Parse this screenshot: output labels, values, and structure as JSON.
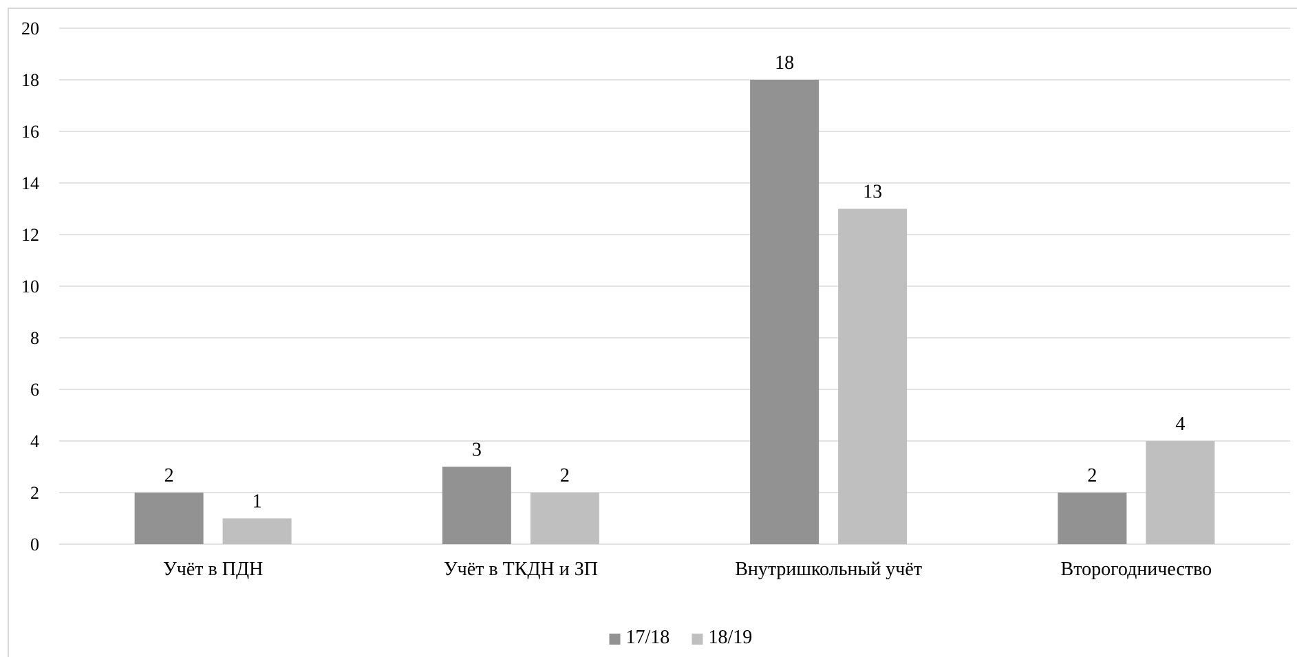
{
  "chart_data": {
    "type": "bar",
    "categories": [
      "Учёт в ПДН",
      "Учёт в ТКДН и ЗП",
      "Внутришкольный учёт",
      "Второгодничество"
    ],
    "series": [
      {
        "name": "17/18",
        "values": [
          2,
          3,
          18,
          2
        ],
        "color": "#929292"
      },
      {
        "name": "18/19",
        "values": [
          1,
          2,
          13,
          4
        ],
        "color": "#bfbfbf"
      }
    ],
    "ylim": [
      0,
      20
    ],
    "yticks": [
      "0",
      "2",
      "4",
      "6",
      "8",
      "10",
      "12",
      "14",
      "16",
      "18",
      "20"
    ],
    "grid": true,
    "data_labels": true,
    "legend_position": "bottom",
    "gridline_color": "#d9d9d9"
  }
}
